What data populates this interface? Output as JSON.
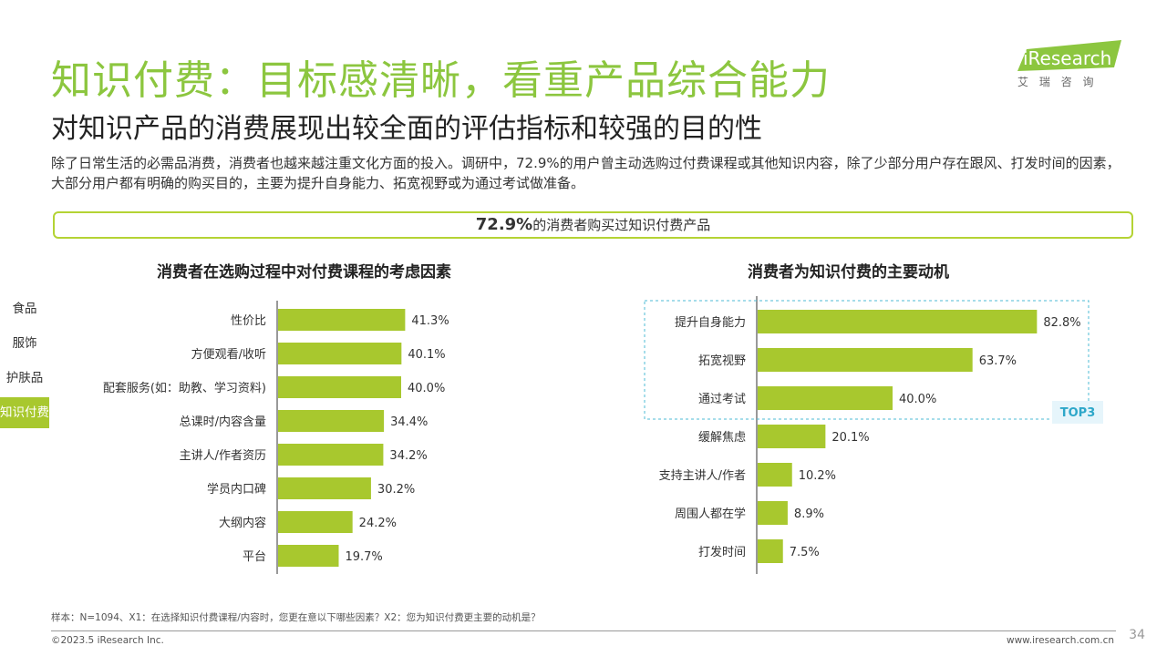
{
  "header": {
    "title": "知识付费：目标感清晰，看重产品综合能力",
    "subtitle": "对知识产品的消费展现出较全面的评估指标和较强的目的性",
    "intro": "除了日常生活的必需品消费，消费者也越来越注重文化方面的投入。调研中，72.9%的用户曾主动选购过付费课程或其他知识内容，除了少部分用户存在跟风、打发时间的因素，大部分用户都有明确的购买目的，主要为提升自身能力、拓宽视野或为通过考试做准备。"
  },
  "highlight": {
    "pct": "72.9%",
    "text": "的消费者购买过知识付费产品"
  },
  "logo": {
    "brand": "iResearch",
    "sub": "艾 瑞 咨 询",
    "color": "#8cc63f"
  },
  "sidebar": {
    "items": [
      {
        "label": "食品"
      },
      {
        "label": "服饰"
      },
      {
        "label": "护肤品"
      },
      {
        "label": "知识付费"
      }
    ],
    "active_index": 3
  },
  "colors": {
    "bar": "#a8c82e",
    "accent": "#8cc63f",
    "top3_border": "#4dbbd5",
    "top3_text": "#2ea7c9"
  },
  "top3_label": "TOP3",
  "chart_data": [
    {
      "type": "bar",
      "orientation": "horizontal",
      "title": "消费者在选购过程中对付费课程的考虑因素",
      "categories": [
        "性价比",
        "方便观看/收听",
        "配套服务(如：助教、学习资料)",
        "总课时/内容含量",
        "主讲人/作者资历",
        "学员内口碑",
        "大纲内容",
        "平台"
      ],
      "values": [
        41.3,
        40.1,
        40.0,
        34.4,
        34.2,
        30.2,
        24.2,
        19.7
      ],
      "labels": [
        "41.3%",
        "40.1%",
        "40.0%",
        "34.4%",
        "34.2%",
        "30.2%",
        "24.2%",
        "19.7%"
      ],
      "unit": "%",
      "xlim": [
        0,
        80
      ]
    },
    {
      "type": "bar",
      "orientation": "horizontal",
      "title": "消费者为知识付费的主要动机",
      "categories": [
        "提升自身能力",
        "拓宽视野",
        "通过考试",
        "缓解焦虑",
        "支持主讲人/作者",
        "周围人都在学",
        "打发时间"
      ],
      "values": [
        82.8,
        63.7,
        40.0,
        20.1,
        10.2,
        8.9,
        7.5
      ],
      "labels": [
        "82.8%",
        "63.7%",
        "40.0%",
        "20.1%",
        "10.2%",
        "8.9%",
        "7.5%"
      ],
      "unit": "%",
      "xlim": [
        0,
        100
      ],
      "top_n_highlight": 3
    }
  ],
  "footer": {
    "note": "样本：N=1094、X1：在选择知识付费课程/内容时，您更在意以下哪些因素？X2：您为知识付费更主要的动机是？",
    "copyright": "©2023.5 iResearch Inc.",
    "site": "www.iresearch.com.cn",
    "page": "34"
  }
}
